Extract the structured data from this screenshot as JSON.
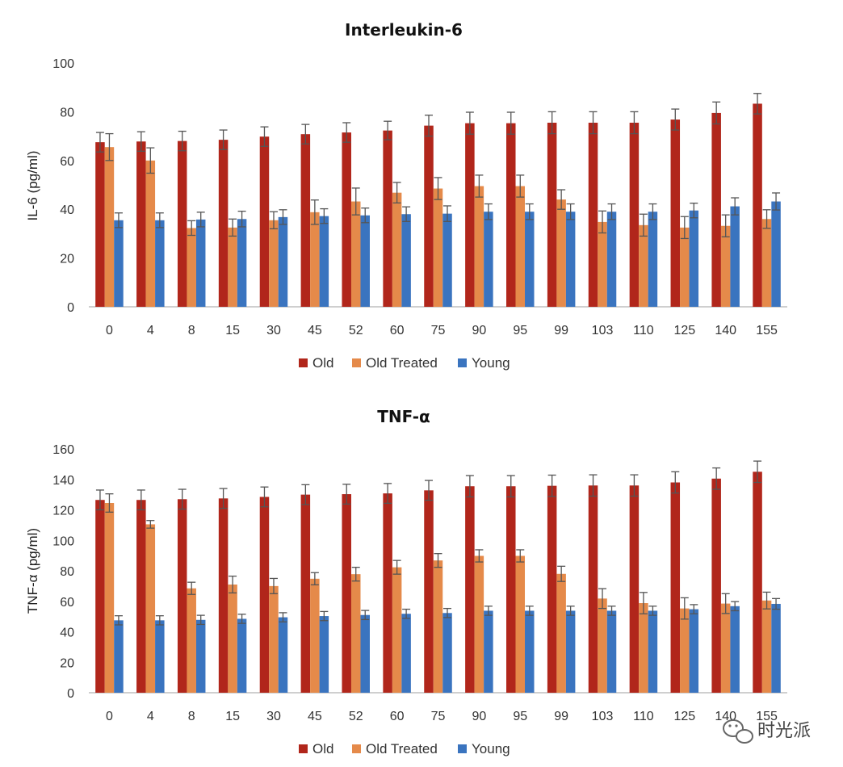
{
  "colors": {
    "old": "#b1261b",
    "old_treated": "#e58a4a",
    "young": "#3a74bf",
    "axis": "#bfbfbf",
    "errbar": "#555555"
  },
  "legend": [
    {
      "key": "old",
      "label": "Old"
    },
    {
      "key": "old_treated",
      "label": "Old Treated"
    },
    {
      "key": "young",
      "label": "Young"
    }
  ],
  "watermark": {
    "text": "时光派",
    "icon": "wechat-bubble-icon"
  },
  "chart_data": [
    {
      "type": "bar",
      "title": "Interleukin-6",
      "xlabel": "",
      "ylabel": "IL-6 (pg/ml)",
      "ylim": [
        0,
        100
      ],
      "yticks": [
        0,
        20,
        40,
        60,
        80,
        100
      ],
      "categories": [
        "0",
        "4",
        "8",
        "15",
        "30",
        "45",
        "52",
        "60",
        "75",
        "90",
        "95",
        "99",
        "103",
        "110",
        "125",
        "140",
        "155"
      ],
      "series": [
        {
          "name": "Old",
          "key": "old",
          "values": [
            67.5,
            67.8,
            68,
            68.5,
            69.8,
            70.8,
            71.5,
            72.3,
            74.3,
            75.3,
            75.3,
            75.5,
            75.5,
            75.5,
            76.8,
            79.5,
            83.3
          ],
          "errors": [
            4,
            4,
            4,
            4,
            4,
            4,
            4,
            3.8,
            4.3,
            4.5,
            4.5,
            4.5,
            4.5,
            4.5,
            4.3,
            4.5,
            4.2
          ]
        },
        {
          "name": "Old Treated",
          "key": "old_treated",
          "values": [
            65.5,
            60,
            32.3,
            32.5,
            35.5,
            38.8,
            43.2,
            46.8,
            48.5,
            49.5,
            49.5,
            44,
            34.8,
            33.5,
            32.5,
            33.2,
            36
          ],
          "errors": [
            5.5,
            5.2,
            3,
            3.5,
            3.5,
            5,
            5.5,
            4.2,
            4.5,
            4.5,
            4.5,
            4,
            4.5,
            4.5,
            4.5,
            4.5,
            3.8
          ]
        },
        {
          "name": "Young",
          "key": "young",
          "values": [
            35.5,
            35.5,
            35.8,
            36,
            36.8,
            37.2,
            37.5,
            38,
            38.2,
            39,
            39,
            39,
            39,
            39,
            39.5,
            41.2,
            43.2
          ],
          "errors": [
            3,
            3,
            3,
            3.2,
            3,
            3,
            3,
            3,
            3.2,
            3.2,
            3.2,
            3.2,
            3.2,
            3.2,
            3,
            3.5,
            3.5
          ]
        }
      ]
    },
    {
      "type": "bar",
      "title": "TNF-α",
      "xlabel": "",
      "ylabel": "TNF-α (pg/ml)",
      "ylim": [
        0,
        160
      ],
      "yticks": [
        0,
        20,
        40,
        60,
        80,
        100,
        120,
        140,
        160
      ],
      "categories": [
        "0",
        "4",
        "8",
        "15",
        "30",
        "45",
        "52",
        "60",
        "75",
        "90",
        "95",
        "99",
        "103",
        "110",
        "125",
        "140",
        "155"
      ],
      "series": [
        {
          "name": "Old",
          "key": "old",
          "values": [
            126.5,
            126.5,
            127,
            127.5,
            128.5,
            130,
            130.3,
            130.8,
            132.8,
            135.5,
            135.5,
            135.8,
            136,
            136,
            138,
            140.5,
            145
          ],
          "errors": [
            6.5,
            6.5,
            6.5,
            6.5,
            6.5,
            6.5,
            6.5,
            6.5,
            6.5,
            7,
            7,
            7,
            7,
            7,
            7,
            7,
            7
          ]
        },
        {
          "name": "Old Treated",
          "key": "old_treated",
          "values": [
            124.5,
            110.5,
            68.5,
            71,
            70,
            74.8,
            77.8,
            82.3,
            86.8,
            89.8,
            89.8,
            78,
            61.8,
            58.8,
            55.3,
            58.5,
            60.5
          ],
          "errors": [
            6,
            2.5,
            4,
            5.5,
            5,
            4,
            4.5,
            4.5,
            4.5,
            4,
            4,
            5,
            6.5,
            7,
            7,
            6.5,
            5.5
          ]
        },
        {
          "name": "Young",
          "key": "young",
          "values": [
            47.5,
            47.5,
            47.8,
            48.5,
            49.5,
            50.3,
            51,
            51.8,
            52.3,
            53.8,
            53.8,
            53.8,
            53.8,
            53.8,
            54.8,
            56.8,
            58.3
          ],
          "errors": [
            3,
            3,
            3,
            3,
            3,
            3,
            3,
            3,
            3,
            3,
            3,
            3,
            3,
            3,
            3,
            3,
            3.5
          ]
        }
      ]
    }
  ]
}
